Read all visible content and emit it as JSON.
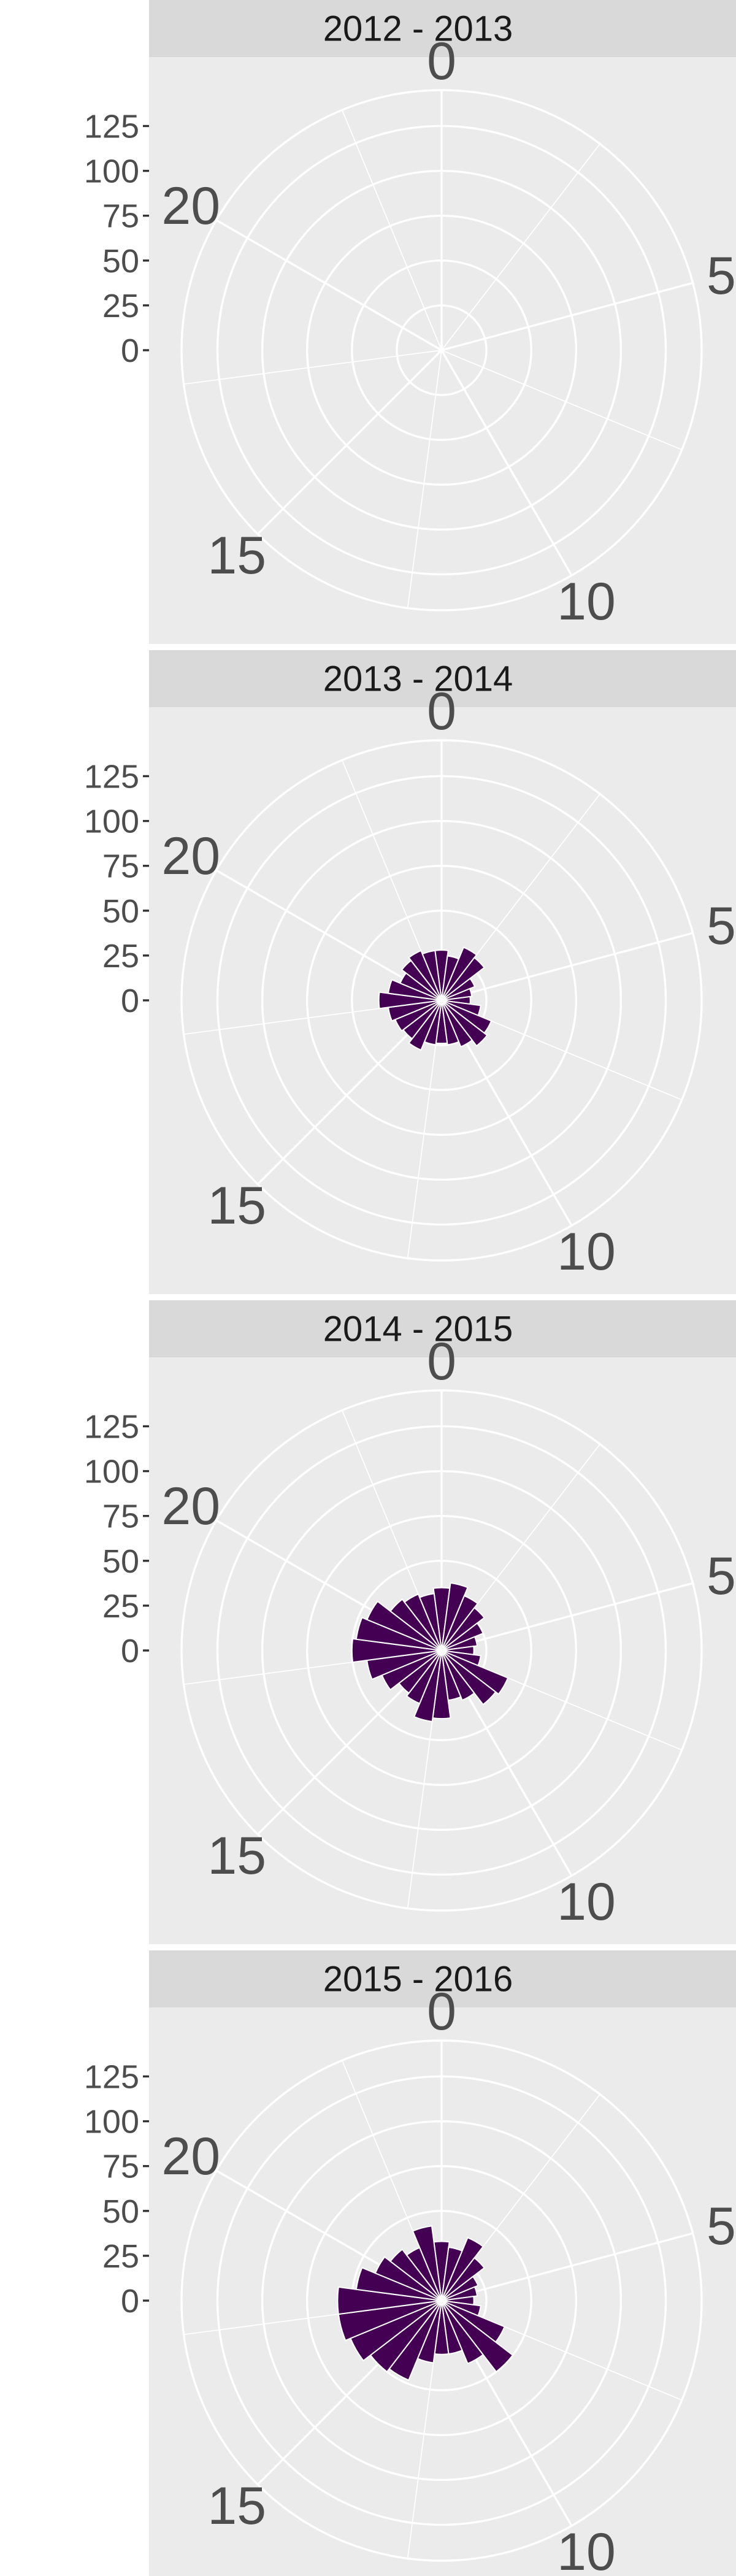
{
  "chart_data": [
    {
      "type": "bar",
      "coord": "polar",
      "title": "2012 - 2013",
      "theta_labels": [
        "0",
        "5",
        "10",
        "15",
        "20"
      ],
      "r_ticks": [
        0,
        25,
        50,
        75,
        100,
        125
      ],
      "r_labels": [
        "0",
        "25",
        "50",
        "75",
        "100",
        "125"
      ],
      "hours": [
        0,
        1,
        2,
        3,
        4,
        5,
        6,
        7,
        8,
        9,
        10,
        11,
        12,
        13,
        14,
        15,
        16,
        17,
        18,
        19,
        20,
        21,
        22,
        23
      ],
      "values": [
        3,
        1,
        1,
        0,
        0,
        1,
        1,
        0,
        1,
        1,
        2,
        1,
        1,
        0,
        1,
        1,
        2,
        0,
        1,
        1,
        1,
        0,
        0,
        2
      ],
      "fill": "#440154"
    },
    {
      "type": "bar",
      "coord": "polar",
      "title": "2013 - 2014",
      "theta_labels": [
        "0",
        "5",
        "10",
        "15",
        "20"
      ],
      "r_ticks": [
        0,
        25,
        50,
        75,
        100,
        125
      ],
      "r_labels": [
        "0",
        "25",
        "50",
        "75",
        "100",
        "125"
      ],
      "hours": [
        0,
        1,
        2,
        3,
        4,
        5,
        6,
        7,
        8,
        9,
        10,
        11,
        12,
        13,
        14,
        15,
        16,
        17,
        18,
        19,
        20,
        21,
        22,
        23
      ],
      "values": [
        28,
        25,
        32,
        30,
        20,
        17,
        16,
        22,
        30,
        32,
        28,
        25,
        24,
        25,
        30,
        27,
        28,
        30,
        35,
        30,
        25,
        28,
        30,
        28
      ],
      "fill": "#440154"
    },
    {
      "type": "bar",
      "coord": "polar",
      "title": "2014 - 2015",
      "theta_labels": [
        "0",
        "5",
        "10",
        "15",
        "20"
      ],
      "r_ticks": [
        0,
        25,
        50,
        75,
        100,
        125
      ],
      "r_labels": [
        "0",
        "25",
        "50",
        "75",
        "100",
        "125"
      ],
      "hours": [
        0,
        1,
        2,
        3,
        4,
        5,
        6,
        7,
        8,
        9,
        10,
        11,
        12,
        13,
        14,
        15,
        16,
        17,
        18,
        19,
        20,
        21,
        22,
        23
      ],
      "values": [
        35,
        38,
        33,
        30,
        25,
        20,
        18,
        22,
        40,
        38,
        30,
        28,
        38,
        40,
        32,
        30,
        36,
        42,
        50,
        48,
        45,
        36,
        34,
        32
      ],
      "fill": "#440154"
    },
    {
      "type": "bar",
      "coord": "polar",
      "title": "2015 - 2016",
      "theta_labels": [
        "0",
        "5",
        "10",
        "15",
        "20"
      ],
      "r_ticks": [
        0,
        25,
        50,
        75,
        100,
        125
      ],
      "r_labels": [
        "0",
        "25",
        "50",
        "75",
        "100",
        "125"
      ],
      "hours": [
        0,
        1,
        2,
        3,
        4,
        5,
        6,
        7,
        8,
        9,
        10,
        11,
        12,
        13,
        14,
        15,
        16,
        17,
        18,
        19,
        20,
        21,
        22,
        23
      ],
      "values": [
        33,
        30,
        38,
        30,
        22,
        20,
        18,
        22,
        38,
        50,
        38,
        30,
        30,
        35,
        48,
        50,
        55,
        58,
        58,
        48,
        40,
        36,
        32,
        42
      ],
      "fill": "#440154"
    }
  ]
}
